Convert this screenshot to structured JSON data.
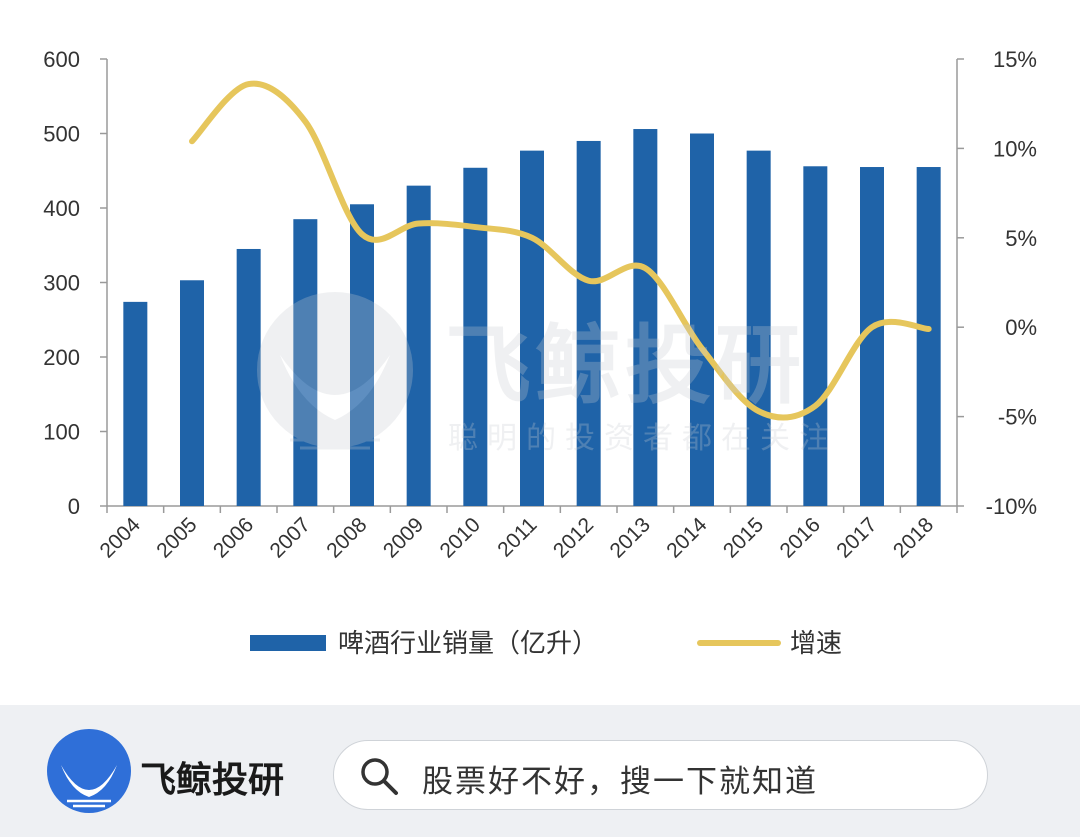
{
  "chart_data": {
    "type": "bar",
    "categories": [
      "2004",
      "2005",
      "2006",
      "2007",
      "2008",
      "2009",
      "2010",
      "2011",
      "2012",
      "2013",
      "2014",
      "2015",
      "2016",
      "2017",
      "2018"
    ],
    "series": [
      {
        "name": "啤酒行业销量（亿升）",
        "type": "bar",
        "axis": "left",
        "color": "#1f63a8",
        "values": [
          274,
          303,
          345,
          385,
          405,
          430,
          454,
          477,
          490,
          506,
          500,
          477,
          456,
          455,
          455
        ]
      },
      {
        "name": "增速",
        "type": "line",
        "axis": "right",
        "color": "#e6c65c",
        "smooth": true,
        "values": [
          null,
          0.104,
          0.136,
          0.115,
          0.052,
          0.058,
          0.056,
          0.05,
          0.026,
          0.033,
          -0.012,
          -0.047,
          -0.044,
          0.0,
          -0.001
        ]
      }
    ],
    "y_left": {
      "range": [
        0,
        600
      ],
      "ticks": [
        0,
        100,
        200,
        300,
        400,
        500,
        600
      ],
      "tick_labels": [
        "0",
        "100",
        "200",
        "300",
        "400",
        "500",
        "600"
      ]
    },
    "y_right": {
      "range": [
        -0.1,
        0.15
      ],
      "ticks": [
        -0.1,
        -0.05,
        0,
        0.05,
        0.1,
        0.15
      ],
      "tick_labels": [
        "-10%",
        "-5%",
        "0%",
        "5%",
        "10%",
        "15%"
      ]
    },
    "grid": false,
    "legend": {
      "position": "bottom"
    },
    "title": "",
    "xlabel": "",
    "ylabel": ""
  },
  "watermark": {
    "title": "飞鲸投研",
    "slogan": "聪明的投资者都在关注"
  },
  "footer": {
    "brand": "飞鲸投研",
    "search_text": "股票好不好，搜一下就知道",
    "brand_color": "#2f6fd8"
  }
}
